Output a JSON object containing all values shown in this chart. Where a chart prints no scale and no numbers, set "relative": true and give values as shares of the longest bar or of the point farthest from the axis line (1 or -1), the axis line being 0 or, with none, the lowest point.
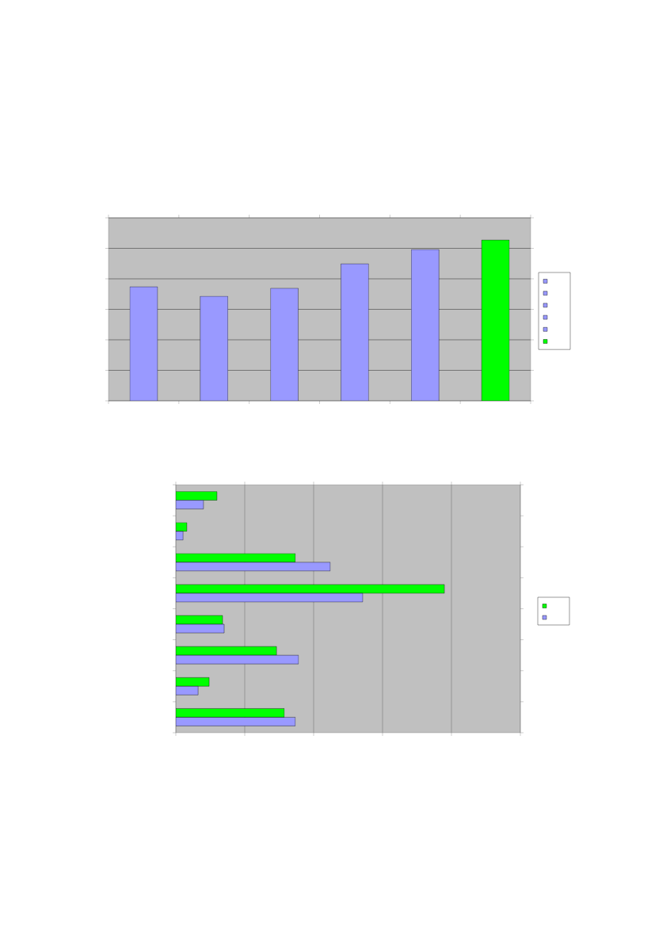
{
  "chart_data": [
    {
      "type": "bar",
      "relative": true,
      "categories": [
        null,
        null,
        null,
        null,
        null,
        null
      ],
      "values": [
        0.709,
        0.65,
        0.7,
        0.852,
        0.941,
        1
      ],
      "colors": [
        "#9999ff",
        "#9999ff",
        "#9999ff",
        "#9999ff",
        "#9999ff",
        "#00ff00"
      ],
      "grid": "y",
      "tick_labels": false
    },
    {
      "type": "bar",
      "relative": true,
      "orientation": "horizontal",
      "categories": [
        null,
        null,
        null,
        null,
        null,
        null,
        null,
        null
      ],
      "series": [
        {
          "color": "#00ff00",
          "values": [
            0.153,
            0.041,
            0.445,
            1,
            0.174,
            0.375,
            0.124,
            0.404
          ]
        },
        {
          "color": "#9999ff",
          "values": [
            0.103,
            0.027,
            0.575,
            0.696,
            0.18,
            0.457,
            0.083,
            0.445
          ]
        }
      ],
      "grid": "x",
      "tick_labels": false
    }
  ]
}
